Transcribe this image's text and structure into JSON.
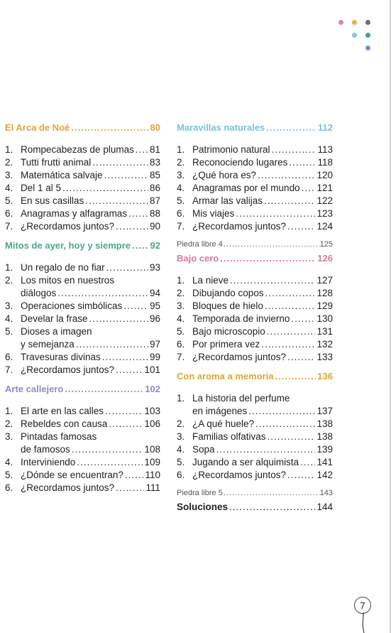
{
  "colors": {
    "orange": "#e3a33a",
    "green": "#4fa58d",
    "purple": "#8d8ec4",
    "blue": "#7fbfd4",
    "pink": "#d47c99",
    "amber": "#e0a630"
  },
  "decor_dots": [
    "#d987a8",
    "#e8b04a",
    "#6c6c6c",
    "#86c9d6",
    "#3ea58c",
    "#7e8fc1"
  ],
  "left_sections": [
    {
      "title": "El Arca de Noé",
      "page": "80",
      "color": "#e3a33a",
      "items": [
        {
          "num": "1.",
          "lines": [
            {
              "text": "Rompecabezas de plumas",
              "page": "81"
            }
          ]
        },
        {
          "num": "2.",
          "lines": [
            {
              "text": "Tutti frutti animal",
              "page": "83"
            }
          ]
        },
        {
          "num": "3.",
          "lines": [
            {
              "text": "Matemática salvaje",
              "page": "85"
            }
          ]
        },
        {
          "num": "4.",
          "lines": [
            {
              "text": "Del 1 al 5",
              "page": "86"
            }
          ]
        },
        {
          "num": "5.",
          "lines": [
            {
              "text": "En sus casillas",
              "page": "87"
            }
          ]
        },
        {
          "num": "6.",
          "lines": [
            {
              "text": "Anagramas y alfagramas",
              "page": "88"
            }
          ]
        },
        {
          "num": "7.",
          "lines": [
            {
              "text": "¿Recordamos juntos?",
              "page": "90"
            }
          ]
        }
      ]
    },
    {
      "title": "Mitos de ayer, hoy y siempre",
      "page": "92",
      "color": "#4fa58d",
      "items": [
        {
          "num": "1.",
          "lines": [
            {
              "text": "Un regalo de no fiar",
              "page": "93"
            }
          ]
        },
        {
          "num": "2.",
          "lines": [
            {
              "text": "Los mitos en nuestros",
              "page": ""
            },
            {
              "text": "diálogos",
              "page": "94"
            }
          ]
        },
        {
          "num": "3.",
          "lines": [
            {
              "text": "Operaciones simbólicas",
              "page": "95"
            }
          ]
        },
        {
          "num": "4.",
          "lines": [
            {
              "text": "Develar la frase",
              "page": "96"
            }
          ]
        },
        {
          "num": "5.",
          "lines": [
            {
              "text": "Dioses a imagen",
              "page": ""
            },
            {
              "text": "y semejanza",
              "page": "97"
            }
          ]
        },
        {
          "num": "6.",
          "lines": [
            {
              "text": "Travesuras divinas",
              "page": "99"
            }
          ]
        },
        {
          "num": "7.",
          "lines": [
            {
              "text": "¿Recordamos juntos?",
              "page": "101"
            }
          ]
        }
      ]
    },
    {
      "title": "Arte callejero",
      "page": "102",
      "color": "#8d8ec4",
      "items": [
        {
          "num": "1.",
          "lines": [
            {
              "text": "El arte en las calles",
              "page": "103"
            }
          ]
        },
        {
          "num": "2.",
          "lines": [
            {
              "text": "Rebeldes con causa",
              "page": "106"
            }
          ]
        },
        {
          "num": "3.",
          "lines": [
            {
              "text": "Pintadas famosas",
              "page": ""
            },
            {
              "text": "de famosos",
              "page": "108"
            }
          ]
        },
        {
          "num": "4.",
          "lines": [
            {
              "text": "Interviniendo",
              "page": "109"
            }
          ]
        },
        {
          "num": "5.",
          "lines": [
            {
              "text": "¿Dónde se encuentran?",
              "page": "110"
            }
          ]
        },
        {
          "num": "6.",
          "lines": [
            {
              "text": "¿Recordamos juntos?",
              "page": "111"
            }
          ]
        }
      ]
    }
  ],
  "right_sections": [
    {
      "title": "Maravillas naturales",
      "page": "112",
      "color": "#7fbfd4",
      "items": [
        {
          "num": "1.",
          "lines": [
            {
              "text": "Patrimonio natural",
              "page": "113"
            }
          ]
        },
        {
          "num": "2.",
          "lines": [
            {
              "text": "Reconociendo lugares",
              "page": "118"
            }
          ]
        },
        {
          "num": "3.",
          "lines": [
            {
              "text": "¿Qué hora es?",
              "page": "120"
            }
          ]
        },
        {
          "num": "4.",
          "lines": [
            {
              "text": "Anagramas por el mundo",
              "page": "121"
            }
          ]
        },
        {
          "num": "5.",
          "lines": [
            {
              "text": "Armar las valijas",
              "page": "122"
            }
          ]
        },
        {
          "num": "6.",
          "lines": [
            {
              "text": "Mis viajes",
              "page": "123"
            }
          ]
        },
        {
          "num": "7.",
          "lines": [
            {
              "text": "¿Recordamos juntos?",
              "page": "124"
            }
          ]
        }
      ],
      "free": {
        "text": "Piedra libre 4",
        "page": "125"
      }
    },
    {
      "title": "Bajo cero",
      "page": "126",
      "color": "#d47c99",
      "items": [
        {
          "num": "1.",
          "lines": [
            {
              "text": "La nieve",
              "page": "127"
            }
          ]
        },
        {
          "num": "2.",
          "lines": [
            {
              "text": "Dibujando copos",
              "page": "128"
            }
          ]
        },
        {
          "num": "3.",
          "lines": [
            {
              "text": "Bloques de hielo",
              "page": "129"
            }
          ]
        },
        {
          "num": "4.",
          "lines": [
            {
              "text": "Temporada de invierno",
              "page": "130"
            }
          ]
        },
        {
          "num": "5.",
          "lines": [
            {
              "text": "Bajo microscopio",
              "page": "131"
            }
          ]
        },
        {
          "num": "6.",
          "lines": [
            {
              "text": "Por primera vez",
              "page": "132"
            }
          ]
        },
        {
          "num": "7.",
          "lines": [
            {
              "text": "¿Recordamos juntos?",
              "page": "133"
            }
          ]
        }
      ]
    },
    {
      "title": "Con aroma a memoria",
      "page": "136",
      "color": "#e0a630",
      "items": [
        {
          "num": "1.",
          "lines": [
            {
              "text": "La historia del perfume",
              "page": ""
            },
            {
              "text": "en imágenes",
              "page": "137"
            }
          ]
        },
        {
          "num": "2.",
          "lines": [
            {
              "text": "¿A qué huele?",
              "page": "138"
            }
          ]
        },
        {
          "num": "3.",
          "lines": [
            {
              "text": "Familias olfativas",
              "page": "138"
            }
          ]
        },
        {
          "num": "4.",
          "lines": [
            {
              "text": "Sopa",
              "page": "139"
            }
          ]
        },
        {
          "num": "5.",
          "lines": [
            {
              "text": "Jugando a ser alquimista",
              "page": "141"
            }
          ]
        },
        {
          "num": "6.",
          "lines": [
            {
              "text": "¿Recordamos juntos?",
              "page": "142"
            }
          ]
        }
      ],
      "free": {
        "text": "Piedra libre 5",
        "page": "143"
      }
    }
  ],
  "solutions": {
    "label": "Soluciones",
    "page": "144"
  },
  "page_number": "7"
}
